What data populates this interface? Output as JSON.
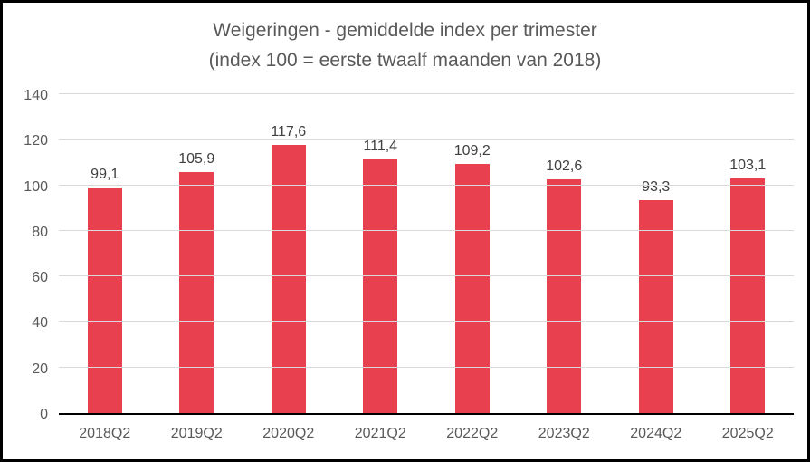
{
  "chart_data": {
    "type": "bar",
    "title": "Weigeringen - gemiddelde index per trimester",
    "subtitle": "(index 100 = eerste twaalf maanden van 2018)",
    "categories": [
      "2018Q2",
      "2019Q2",
      "2020Q2",
      "2021Q2",
      "2022Q2",
      "2023Q2",
      "2024Q2",
      "2025Q2"
    ],
    "values": [
      99.1,
      105.9,
      117.6,
      111.4,
      109.2,
      102.6,
      93.3,
      103.1
    ],
    "value_labels": [
      "99,1",
      "105,9",
      "117,6",
      "111,4",
      "109,2",
      "102,6",
      "93,3",
      "103,1"
    ],
    "xlabel": "",
    "ylabel": "",
    "ylim": [
      0,
      140
    ],
    "yticks": [
      0,
      20,
      40,
      60,
      80,
      100,
      120,
      140
    ],
    "grid": true,
    "legend_position": "none",
    "bar_color": "#e8404e",
    "grid_color": "#d9d9d9",
    "axis_line_color": "#000000",
    "axis_text_color": "#595959",
    "data_label_color": "#404040",
    "title_color": "#595959"
  }
}
